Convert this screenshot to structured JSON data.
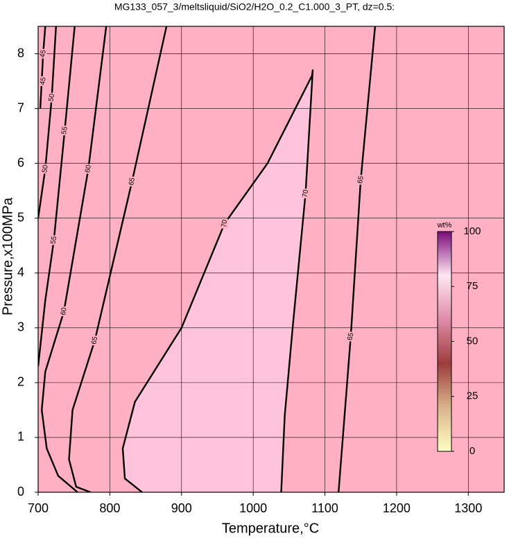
{
  "chart_data": {
    "type": "contour",
    "title": "MG133_057_3/meltsliquid/SiO2/H2O_0.2_C1.000_3_PT, dz=0.5:",
    "x_label": "Temperature,°C",
    "y_label": "Pressure,x100MPa",
    "xlim": [
      700,
      1350
    ],
    "xticks": [
      700,
      800,
      900,
      1000,
      1100,
      1200,
      1300
    ],
    "ylim": [
      0,
      8.5
    ],
    "yticks": [
      0,
      1,
      2,
      3,
      4,
      5,
      6,
      7,
      8
    ],
    "grid": true,
    "background_color": "#ffb1c3",
    "contour_color": "#000000",
    "contours": [
      {
        "level": 45,
        "x": [
          703,
          707,
          710
        ],
        "y": [
          7.0,
          8.0,
          8.5
        ],
        "labels": [
          [
            707,
            8.0
          ],
          [
            707,
            7.5
          ]
        ]
      },
      {
        "level": 50,
        "x": [
          700,
          710,
          719,
          725
        ],
        "y": [
          5.0,
          5.9,
          7.2,
          8.5
        ],
        "labels": [
          [
            719,
            7.2
          ],
          [
            710,
            5.9
          ]
        ]
      },
      {
        "level": 55,
        "x": [
          700,
          710,
          722,
          737,
          751
        ],
        "y": [
          2.3,
          3.5,
          4.6,
          6.6,
          8.5
        ],
        "labels": [
          [
            737,
            6.6
          ],
          [
            722,
            4.6
          ]
        ]
      },
      {
        "level": 60,
        "x": [
          755,
          728,
          712,
          705,
          710,
          736,
          770,
          795
        ],
        "y": [
          0,
          0.3,
          0.8,
          1.5,
          2.2,
          3.3,
          5.9,
          8.5
        ],
        "labels": [
          [
            770,
            5.9
          ],
          [
            736,
            3.3
          ]
        ]
      },
      {
        "level": 65,
        "x": [
          773,
          753,
          743,
          748,
          779,
          831,
          879
        ],
        "y": [
          0,
          0.1,
          0.6,
          1.5,
          2.77,
          5.67,
          8.5
        ],
        "labels": [
          [
            831,
            5.67
          ],
          [
            779,
            2.77
          ]
        ]
      },
      {
        "level": 70,
        "x": [
          845,
          821,
          818,
          835,
          900,
          960,
          1020,
          1082,
          1083,
          1073,
          1055,
          1044,
          1039
        ],
        "y": [
          0,
          0.25,
          0.8,
          1.65,
          3,
          4.9,
          6,
          7.6,
          7.7,
          5.45,
          3,
          1.4,
          0
        ],
        "labels": [
          [
            960,
            4.9
          ],
          [
            1073,
            5.45
          ]
        ],
        "fill": "#ffc4dc"
      },
      {
        "level": 65,
        "x": [
          1119,
          1125,
          1136,
          1150,
          1170
        ],
        "y": [
          0,
          1.0,
          2.84,
          5.7,
          8.5
        ],
        "labels": [
          [
            1150,
            5.7
          ],
          [
            1136,
            2.84
          ]
        ]
      }
    ],
    "colorbar": {
      "label": "wt%",
      "lim": [
        0,
        100
      ],
      "ticks": [
        0,
        25,
        50,
        75,
        100
      ],
      "colors": [
        "#ffffc4",
        "#d9b48c",
        "#9c3c3c",
        "#e08ca8",
        "#ffe6f2",
        "#7a0a7a"
      ]
    }
  }
}
